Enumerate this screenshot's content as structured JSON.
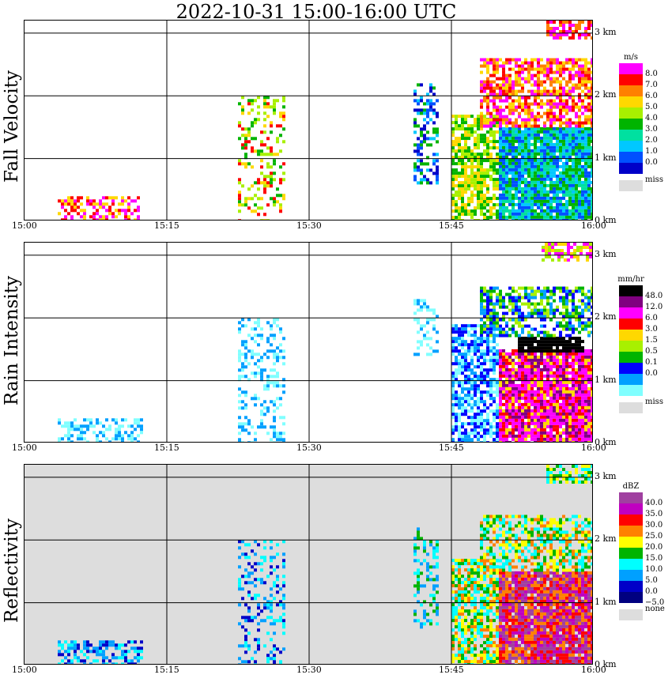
{
  "title": "2022-10-31   15:00-16:00 UTC",
  "chart_data": [
    {
      "type": "heatmap",
      "ylabel": "Fall Velocity",
      "background": "#ffffff",
      "x_ticks": [
        "15:00",
        "15:15",
        "15:30",
        "15:45",
        "16:00"
      ],
      "xlim_minutes": [
        0,
        60
      ],
      "alt_labels": [
        "3 km",
        "2 km",
        "1 km",
        "0 km"
      ],
      "ylim_km": [
        0,
        3.2
      ],
      "legend": {
        "unit": "m/s",
        "levels": [
          "8.0",
          "7.0",
          "6.0",
          "5.0",
          "4.0",
          "3.0",
          "2.0",
          "1.0",
          "0.0"
        ],
        "colors": [
          "#ff00ff",
          "#ff0000",
          "#ff8000",
          "#ffd800",
          "#a8f000",
          "#00b400",
          "#00e0a0",
          "#00c8ff",
          "#0050ff",
          "#0000c8"
        ],
        "missing_label": "miss",
        "missing_color": "#dddddd"
      },
      "echoes": [
        {
          "t0": 3.5,
          "t1": 12.5,
          "h0": 0.0,
          "h1": 0.4,
          "colors": [
            0,
            1,
            3
          ],
          "density": 0.55
        },
        {
          "t0": 22.5,
          "t1": 27.5,
          "h0": 0.0,
          "h1": 2.0,
          "colors": [
            1,
            3,
            4,
            5
          ],
          "density": 0.3
        },
        {
          "t0": 41.0,
          "t1": 43.5,
          "h0": 0.6,
          "h1": 2.3,
          "colors": [
            5,
            7,
            8,
            9
          ],
          "density": 0.4
        },
        {
          "t0": 45.0,
          "t1": 50.0,
          "h0": 0.0,
          "h1": 1.7,
          "colors": [
            3,
            4,
            5
          ],
          "density": 0.75
        },
        {
          "t0": 50.0,
          "t1": 60.0,
          "h0": 0.0,
          "h1": 1.5,
          "colors": [
            5,
            6,
            7,
            8
          ],
          "density": 0.95
        },
        {
          "t0": 48.0,
          "t1": 60.0,
          "h0": 1.5,
          "h1": 2.6,
          "colors": [
            0,
            1,
            2,
            3
          ],
          "density": 0.7
        },
        {
          "t0": 55.0,
          "t1": 60.0,
          "h0": 2.9,
          "h1": 3.2,
          "colors": [
            0,
            1,
            2
          ],
          "density": 0.6
        }
      ]
    },
    {
      "type": "heatmap",
      "ylabel": "Rain Intensity",
      "background": "#ffffff",
      "x_ticks": [
        "15:00",
        "15:15",
        "15:30",
        "15:45",
        "16:00"
      ],
      "xlim_minutes": [
        0,
        60
      ],
      "alt_labels": [
        "3 km",
        "2 km",
        "1 km",
        "0 km"
      ],
      "ylim_km": [
        0,
        3.2
      ],
      "legend": {
        "unit": "mm/hr",
        "levels": [
          "48.0",
          "12.0",
          "6.0",
          "3.0",
          "1.5",
          "0.5",
          "0.1",
          "0.0"
        ],
        "colors": [
          "#000000",
          "#800080",
          "#ff00ff",
          "#ff0000",
          "#ffd800",
          "#a8f000",
          "#00b400",
          "#0000ff",
          "#00a0ff",
          "#80ffff"
        ],
        "missing_label": "miss",
        "missing_color": "#dddddd"
      },
      "echoes": [
        {
          "t0": 3.5,
          "t1": 12.5,
          "h0": 0.0,
          "h1": 0.4,
          "colors": [
            9,
            8
          ],
          "density": 0.5
        },
        {
          "t0": 22.5,
          "t1": 27.5,
          "h0": 0.0,
          "h1": 2.0,
          "colors": [
            9,
            8
          ],
          "density": 0.3
        },
        {
          "t0": 41.0,
          "t1": 43.5,
          "h0": 1.4,
          "h1": 2.3,
          "colors": [
            9,
            8
          ],
          "density": 0.35
        },
        {
          "t0": 45.0,
          "t1": 50.0,
          "h0": 0.0,
          "h1": 1.9,
          "colors": [
            9,
            8,
            7
          ],
          "density": 0.75
        },
        {
          "t0": 50.0,
          "t1": 60.0,
          "h0": 0.0,
          "h1": 1.5,
          "colors": [
            1,
            2,
            3,
            4,
            2
          ],
          "density": 0.95
        },
        {
          "t0": 52.0,
          "t1": 59.0,
          "h0": 1.45,
          "h1": 1.7,
          "colors": [
            0
          ],
          "density": 0.9
        },
        {
          "t0": 48.0,
          "t1": 60.0,
          "h0": 1.7,
          "h1": 2.5,
          "colors": [
            7,
            8,
            6,
            5
          ],
          "density": 0.6
        },
        {
          "t0": 54.5,
          "t1": 60.0,
          "h0": 2.9,
          "h1": 3.2,
          "colors": [
            4,
            5,
            2
          ],
          "density": 0.6
        }
      ]
    },
    {
      "type": "heatmap",
      "ylabel": "Reflectivity",
      "background": "#dddddd",
      "x_ticks": [
        "15:00",
        "15:15",
        "15:30",
        "15:45",
        "16:00"
      ],
      "xlim_minutes": [
        0,
        60
      ],
      "alt_labels": [
        "3 km",
        "2 km",
        "1 km",
        "0 km"
      ],
      "ylim_km": [
        0,
        3.2
      ],
      "legend": {
        "unit": "dBZ",
        "levels": [
          "40.0",
          "35.0",
          "30.0",
          "25.0",
          "20.0",
          "15.0",
          "10.0",
          "5.0",
          "0.0",
          "−5.0"
        ],
        "colors": [
          "#a040a0",
          "#c000c0",
          "#ff0000",
          "#ff8000",
          "#ffff00",
          "#00b400",
          "#00ffff",
          "#00a0ff",
          "#0000c8",
          "#000080"
        ],
        "missing_label": "none",
        "missing_color": "#dddddd"
      },
      "echoes": [
        {
          "t0": 3.5,
          "t1": 12.5,
          "h0": 0.0,
          "h1": 0.4,
          "colors": [
            8,
            7,
            6
          ],
          "density": 0.55
        },
        {
          "t0": 22.5,
          "t1": 27.5,
          "h0": 0.0,
          "h1": 2.0,
          "colors": [
            7,
            6,
            8
          ],
          "density": 0.3
        },
        {
          "t0": 41.0,
          "t1": 43.5,
          "h0": 0.6,
          "h1": 2.2,
          "colors": [
            7,
            6,
            5
          ],
          "density": 0.35
        },
        {
          "t0": 45.0,
          "t1": 50.0,
          "h0": 0.0,
          "h1": 1.7,
          "colors": [
            5,
            4,
            3,
            6
          ],
          "density": 0.75
        },
        {
          "t0": 50.0,
          "t1": 60.0,
          "h0": 0.0,
          "h1": 1.5,
          "colors": [
            0,
            1,
            2,
            3
          ],
          "density": 0.95
        },
        {
          "t0": 48.0,
          "t1": 60.0,
          "h0": 1.5,
          "h1": 2.4,
          "colors": [
            5,
            6,
            4,
            3
          ],
          "density": 0.6
        },
        {
          "t0": 55.0,
          "t1": 60.0,
          "h0": 2.9,
          "h1": 3.2,
          "colors": [
            4,
            5,
            6
          ],
          "density": 0.6
        }
      ]
    }
  ]
}
